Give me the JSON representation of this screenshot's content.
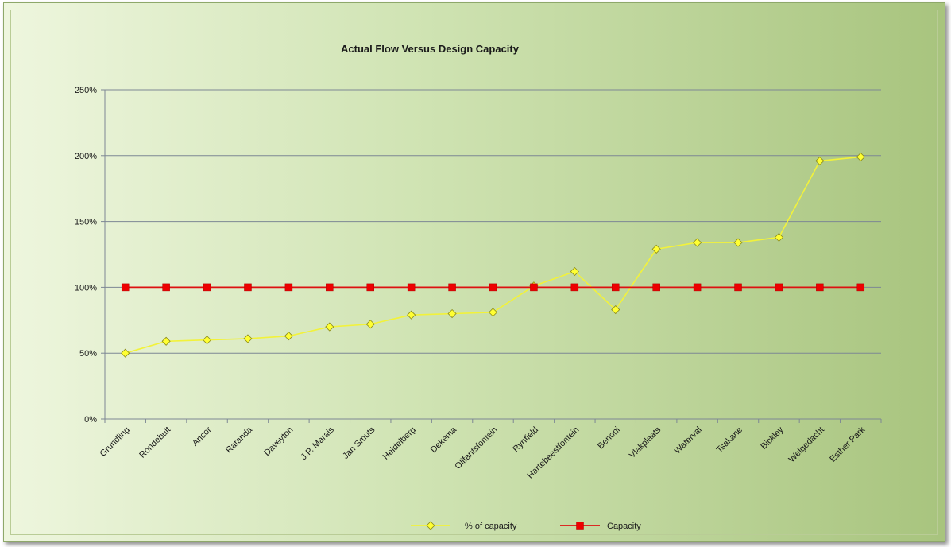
{
  "chart_data": {
    "type": "line",
    "title": "Actual Flow Versus Design Capacity",
    "xlabel": "",
    "ylabel": "",
    "categories": [
      "Grundling",
      "Rondebult",
      "Ancor",
      "Ratanda",
      "Daveyton",
      "J.P. Marais",
      "Jan Smuts",
      "Heidelberg",
      "Dekema",
      "Olifantsfontein",
      "Rynfield",
      "Hartebeestfontein",
      "Benoni",
      "Vlakplaats",
      "Waterval",
      "Tsakane",
      "Bickley",
      "Welgedacht",
      "Esther Park"
    ],
    "ylim": [
      0,
      250
    ],
    "yticks": [
      "0%",
      "50%",
      "100%",
      "150%",
      "200%",
      "250%"
    ],
    "grid": true,
    "legend_position": "bottom",
    "series": [
      {
        "name": "% of capacity",
        "color": "#ffff33",
        "line_color": "#f2f23a",
        "marker": "diamond",
        "values": [
          50,
          59,
          60,
          61,
          63,
          70,
          72,
          79,
          80,
          81,
          101,
          112,
          83,
          129,
          134,
          134,
          138,
          196,
          199
        ]
      },
      {
        "name": "Capacity",
        "color": "#ee0000",
        "line_color": "#dd1111",
        "marker": "square",
        "values": [
          100,
          100,
          100,
          100,
          100,
          100,
          100,
          100,
          100,
          100,
          100,
          100,
          100,
          100,
          100,
          100,
          100,
          100,
          100
        ]
      }
    ]
  }
}
